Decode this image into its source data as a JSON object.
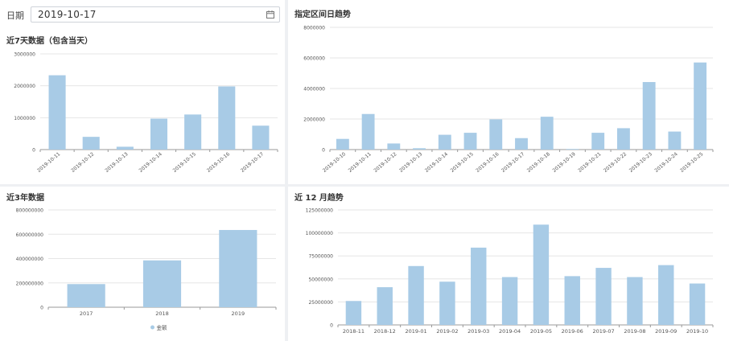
{
  "filter": {
    "date_label": "日期",
    "date_value": "2019-10-17",
    "calendar_icon": "calendar-icon"
  },
  "colors": {
    "bar": "#a8cbe6",
    "grid": "#e6e6e6",
    "axis": "#999999",
    "label": "#555555"
  },
  "chart_data": [
    {
      "id": "last7",
      "type": "bar",
      "title": "近7天数据（包含当天）",
      "categories": [
        "2019-10-11",
        "2019-10-12",
        "2019-10-13",
        "2019-10-14",
        "2019-10-15",
        "2019-10-16",
        "2019-10-17"
      ],
      "values": [
        2330000,
        400000,
        90000,
        970000,
        1100000,
        1980000,
        750000
      ],
      "yticks": [
        "0",
        "1000000",
        "2000000",
        "3000000"
      ],
      "ylim": [
        0,
        3000000
      ],
      "grid": true
    },
    {
      "id": "range",
      "type": "bar",
      "title": "指定区间日趋势",
      "categories": [
        "2019-10-10",
        "2019-10-11",
        "2019-10-12",
        "2019-10-13",
        "2019-10-14",
        "2019-10-15",
        "2019-10-16",
        "2019-10-17",
        "2019-10-18",
        "2019-10-19",
        "2019-10-21",
        "2019-10-22",
        "2019-10-23",
        "2019-10-24",
        "2019-10-25"
      ],
      "values": [
        700000,
        2330000,
        400000,
        90000,
        970000,
        1100000,
        1980000,
        750000,
        2150000,
        40000,
        1100000,
        1400000,
        4420000,
        1180000,
        5700000
      ],
      "yticks": [
        "0",
        "2000000",
        "4000000",
        "6000000",
        "8000000"
      ],
      "ylim": [
        0,
        8000000
      ],
      "grid": true
    },
    {
      "id": "years",
      "type": "bar",
      "title": "近3年数据",
      "categories": [
        "2017",
        "2018",
        "2019"
      ],
      "values": [
        190000000,
        385000000,
        635000000
      ],
      "yticks": [
        "0",
        "200000000",
        "400000000",
        "600000000",
        "800000000"
      ],
      "ylim": [
        0,
        800000000
      ],
      "legend": [
        "金额"
      ],
      "legend_position": "bottom-center",
      "grid": true
    },
    {
      "id": "months",
      "type": "bar",
      "title": "近 12 月趋势",
      "categories": [
        "2018-11",
        "2018-12",
        "2019-01",
        "2019-02",
        "2019-03",
        "2019-04",
        "2019-05",
        "2019-06",
        "2019-07",
        "2019-08",
        "2019-09",
        "2019-10"
      ],
      "values": [
        26000000,
        41000000,
        64000000,
        47000000,
        84000000,
        52000000,
        109000000,
        53000000,
        62000000,
        52000000,
        65000000,
        45000000
      ],
      "yticks": [
        "0",
        "25000000",
        "50000000",
        "75000000",
        "100000000",
        "125000000"
      ],
      "ylim": [
        0,
        125000000
      ],
      "grid": true
    }
  ]
}
